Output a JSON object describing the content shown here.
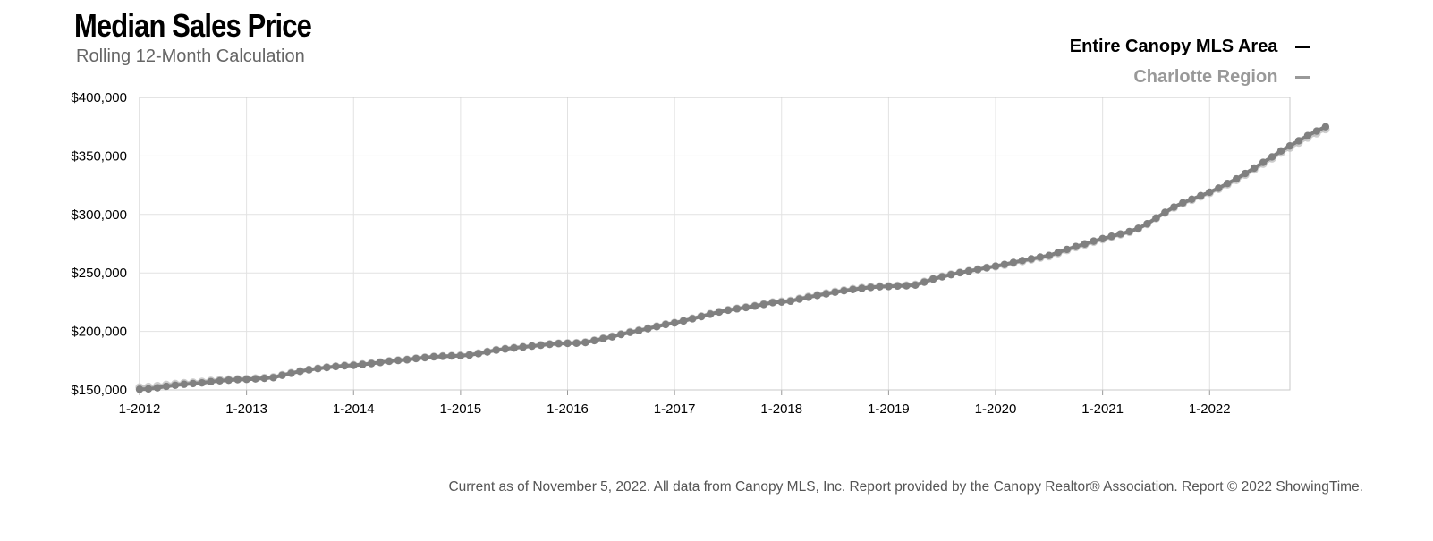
{
  "header": {
    "title": "Median Sales Price",
    "subtitle": "Rolling 12-Month Calculation"
  },
  "footnote": "Current as of November 5, 2022. All data from Canopy MLS, Inc. Report provided by the Canopy Realtor® Association. Report © 2022 ShowingTime.",
  "chart_data": {
    "type": "line",
    "title": "Median Sales Price",
    "subtitle": "Rolling 12-Month Calculation",
    "xlabel": "",
    "ylabel": "",
    "x_start": "1-2012",
    "x_end": "10-2022",
    "x_ticks": [
      "1-2012",
      "1-2013",
      "1-2014",
      "1-2015",
      "1-2016",
      "1-2017",
      "1-2018",
      "1-2019",
      "1-2020",
      "1-2021",
      "1-2022"
    ],
    "y_ticks": [
      150000,
      200000,
      250000,
      300000,
      350000,
      400000
    ],
    "y_tick_labels": [
      "$150,000",
      "$200,000",
      "$250,000",
      "$300,000",
      "$350,000",
      "$400,000"
    ],
    "ylim": [
      150000,
      400000
    ],
    "grid": true,
    "legend_position": "top-right",
    "series": [
      {
        "name": "Entire Canopy MLS Area",
        "color": "#000000",
        "marker_color": "#808080",
        "values": [
          150500,
          150800,
          151800,
          153000,
          154000,
          154800,
          155400,
          156000,
          157000,
          157800,
          158300,
          158800,
          159000,
          159400,
          159900,
          160500,
          162500,
          164200,
          165900,
          167200,
          168200,
          169200,
          170000,
          170600,
          171000,
          171700,
          172500,
          173500,
          174500,
          175200,
          175800,
          176800,
          177600,
          178300,
          178700,
          179000,
          179200,
          179800,
          181000,
          182500,
          184000,
          185000,
          185800,
          186600,
          187400,
          188200,
          189000,
          189600,
          189800,
          189900,
          190500,
          192100,
          193800,
          195400,
          197400,
          199200,
          200700,
          202300,
          204100,
          205900,
          207200,
          208900,
          210800,
          212700,
          214700,
          216600,
          218100,
          219300,
          220400,
          221600,
          223100,
          224600,
          225100,
          225800,
          227600,
          229200,
          230700,
          232100,
          233500,
          234700,
          235800,
          236800,
          237600,
          238200,
          238400,
          238800,
          239000,
          239600,
          242100,
          244700,
          246700,
          248500,
          250200,
          251600,
          252900,
          254400,
          255800,
          257300,
          259000,
          260600,
          262000,
          263600,
          264900,
          267500,
          270100,
          272600,
          274800,
          277200,
          279300,
          281300,
          283300,
          285400,
          288100,
          292000,
          296900,
          301800,
          306300,
          310000,
          313000,
          316000,
          319000,
          322500,
          326500,
          330400,
          335000,
          339600,
          344500,
          349200,
          354300,
          358600,
          363000,
          367400,
          371300,
          375000
        ]
      },
      {
        "name": "Charlotte Region",
        "color": "#999999",
        "marker_color": "#bdbdbd",
        "values": [
          152200,
          152700,
          153500,
          154400,
          155200,
          155800,
          156300,
          157000,
          157900,
          158600,
          159000,
          159300,
          159500,
          159900,
          160300,
          160900,
          162800,
          164500,
          166100,
          167300,
          168400,
          169400,
          170200,
          170900,
          171300,
          172000,
          172800,
          173700,
          174700,
          175400,
          176000,
          177000,
          177800,
          178500,
          178900,
          179200,
          179500,
          180100,
          181300,
          182700,
          184200,
          185200,
          186000,
          186800,
          187600,
          188400,
          189200,
          189800,
          190000,
          190200,
          190800,
          192400,
          194100,
          195700,
          197700,
          199500,
          201000,
          202600,
          204400,
          206200,
          207500,
          209200,
          211100,
          213000,
          215000,
          216900,
          218400,
          219600,
          220700,
          221900,
          223400,
          224900,
          225600,
          226300,
          228100,
          229700,
          231200,
          232600,
          234000,
          235200,
          236300,
          237300,
          238100,
          238600,
          238800,
          239200,
          239400,
          240000,
          242500,
          245000,
          247000,
          248800,
          250400,
          251800,
          253100,
          254500,
          255500,
          256800,
          258500,
          260000,
          261400,
          262900,
          264200,
          266800,
          269400,
          271900,
          274100,
          276500,
          278700,
          280800,
          282800,
          284900,
          287800,
          291700,
          296600,
          301400,
          305800,
          309400,
          312400,
          315300,
          318300,
          321700,
          325600,
          329400,
          333900,
          338400,
          343200,
          347800,
          352800,
          357000,
          361300,
          365600,
          369300,
          372800
        ]
      }
    ]
  }
}
